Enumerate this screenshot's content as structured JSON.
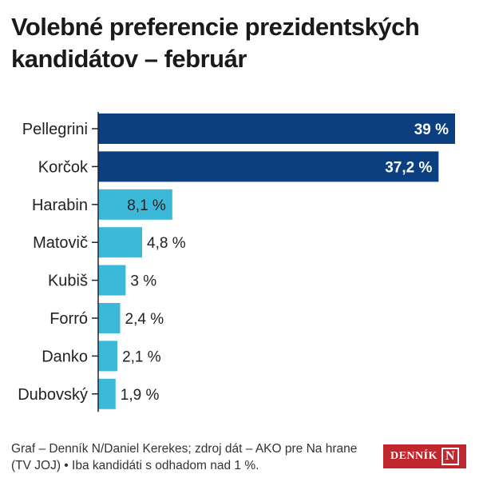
{
  "title": "Volebné preferencie prezidentských kandidátov – február",
  "footer": "Graf – Denník N/Daniel Kerekes; zdroj dát – AKO pre Na hrane (TV JOJ) • Iba kandidáti s odhadom nad 1 %.",
  "logo": {
    "text": "DENNÍK",
    "mark": "N"
  },
  "chart_data": {
    "type": "bar",
    "orientation": "horizontal",
    "title": "Volebné preferencie prezidentských kandidátov – február",
    "xlabel": "",
    "ylabel": "",
    "categories": [
      "Pellegrini",
      "Korčok",
      "Harabin",
      "Matovič",
      "Kubiš",
      "Forró",
      "Danko",
      "Dubovský"
    ],
    "values": [
      39,
      37.2,
      8.1,
      4.8,
      3,
      2.4,
      2.1,
      1.9
    ],
    "labels": [
      "39 %",
      "37,2 %",
      "8,1 %",
      "4,8 %",
      "3 %",
      "2,4 %",
      "2,1 %",
      "1,9 %"
    ],
    "colors": [
      "#0b3f7f",
      "#0b3f7f",
      "#3cb9d9",
      "#3cb9d9",
      "#3cb9d9",
      "#3cb9d9",
      "#3cb9d9",
      "#3cb9d9"
    ],
    "xlim": [
      0,
      39
    ],
    "grid": false,
    "legend": "none"
  }
}
